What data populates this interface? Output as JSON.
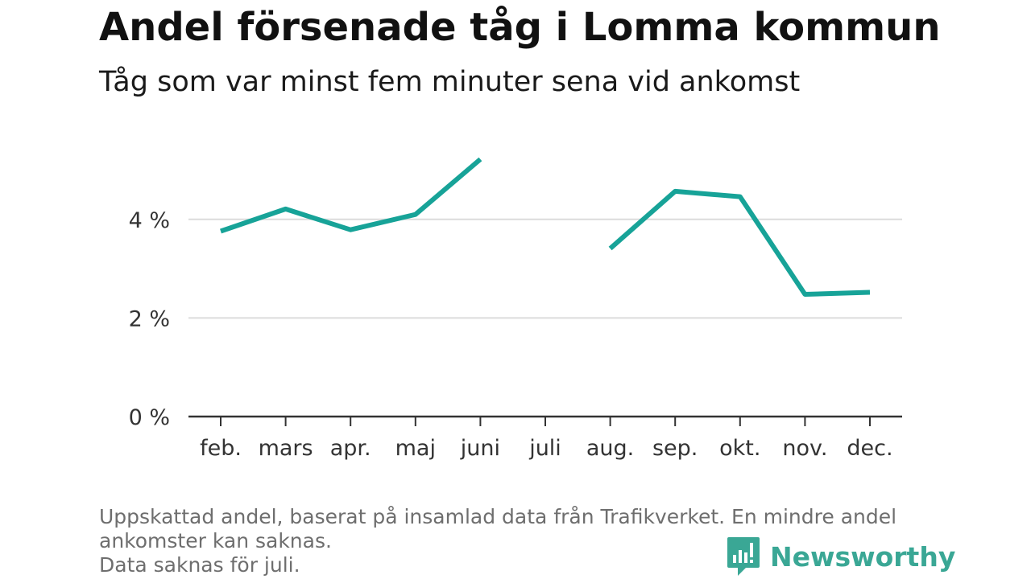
{
  "title": "Andel försenade tåg i Lomma kommun",
  "subtitle": "Tåg som var minst fem minuter sena vid ankomst",
  "footnote": {
    "line1": "Uppskattad andel, baserat på insamlad data från Trafikverket. En mindre andel",
    "line2": "ankomster kan saknas.",
    "line3": "Data saknas för juli."
  },
  "brand": {
    "name": "Newsworthy",
    "color": "#3aa795"
  },
  "chart_data": {
    "type": "line",
    "categories": [
      "feb.",
      "mars",
      "apr.",
      "maj",
      "juni",
      "juli",
      "aug.",
      "sep.",
      "okt.",
      "nov.",
      "dec."
    ],
    "series": [
      {
        "values": [
          3.76,
          4.21,
          3.79,
          4.1,
          5.22,
          null,
          3.41,
          4.57,
          4.46,
          2.48,
          2.52
        ],
        "color": "#17a398"
      }
    ],
    "yticks": [
      {
        "value": 0,
        "label": "0 %"
      },
      {
        "value": 2,
        "label": "2 %"
      },
      {
        "value": 4,
        "label": "4 %"
      }
    ],
    "ylim": [
      0,
      6
    ],
    "grid": true,
    "legend": "none",
    "colors": {
      "grid": "#dcdcdc",
      "axis": "#333333",
      "text": "#333333"
    }
  }
}
